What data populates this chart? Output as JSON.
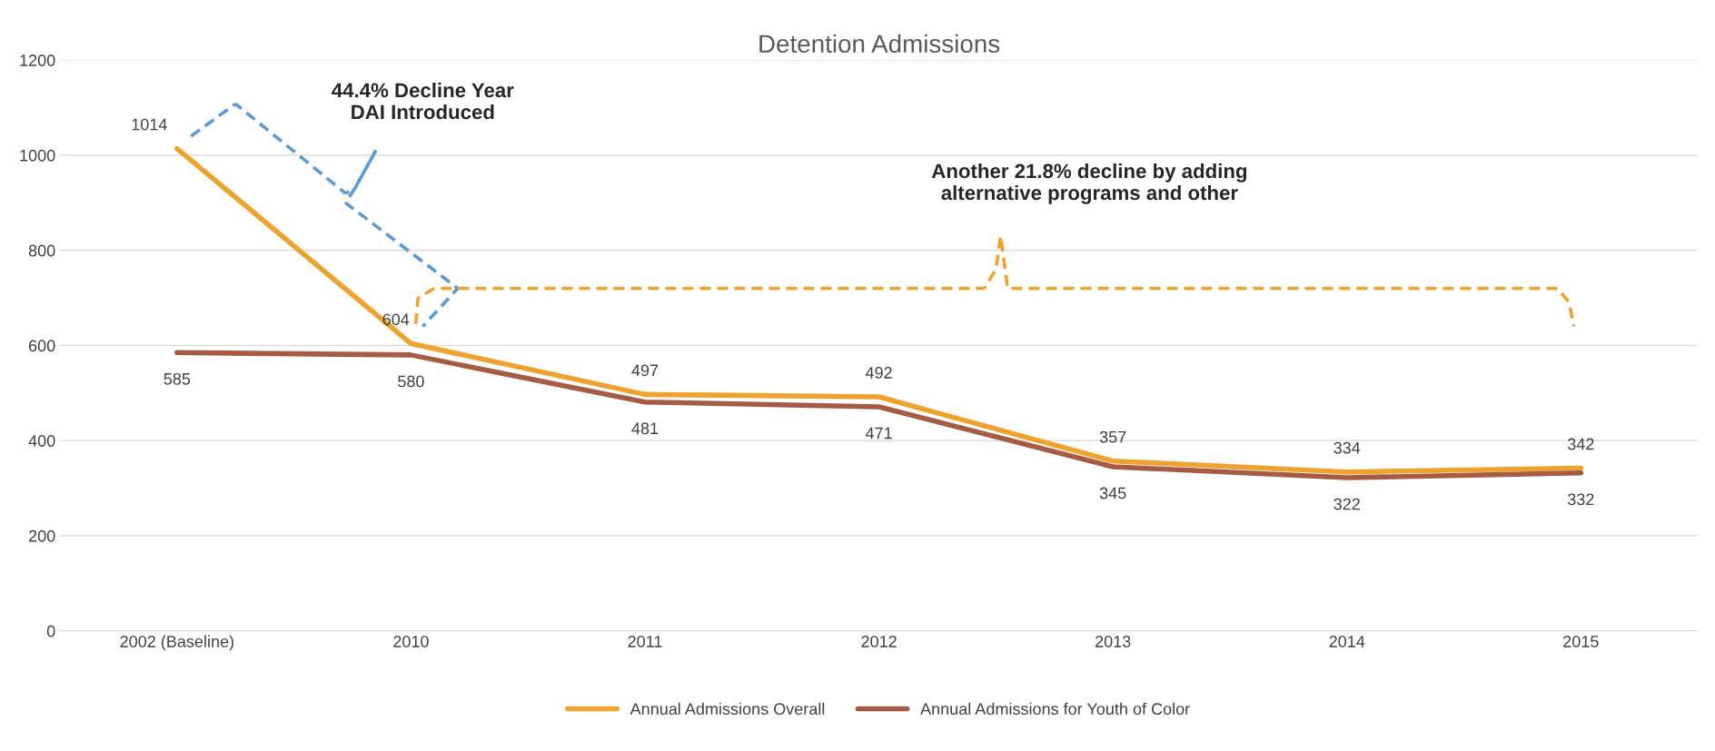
{
  "chart_data": {
    "type": "line",
    "title": "Detention Admissions",
    "categories": [
      "2002 (Baseline)",
      "2010",
      "2011",
      "2012",
      "2013",
      "2014",
      "2015"
    ],
    "series": [
      {
        "name": "Annual Admissions Overall",
        "color": "#f0a22e",
        "values": [
          1014,
          604,
          497,
          492,
          357,
          334,
          342
        ]
      },
      {
        "name": "Annual Admissions for Youth of Color",
        "color": "#a65b43",
        "values": [
          585,
          580,
          481,
          471,
          345,
          322,
          332
        ]
      }
    ],
    "ylim": [
      0,
      1200
    ],
    "yticks": [
      0,
      200,
      400,
      600,
      800,
      1000,
      1200
    ],
    "annotations": [
      "44.4% Decline Year\nDAI Introduced",
      "Another 21.8% decline by adding\nalternative programs and other"
    ],
    "data_labels": true,
    "grid": "y",
    "legend": "bottom",
    "marker": "none",
    "line_style": "solid"
  }
}
